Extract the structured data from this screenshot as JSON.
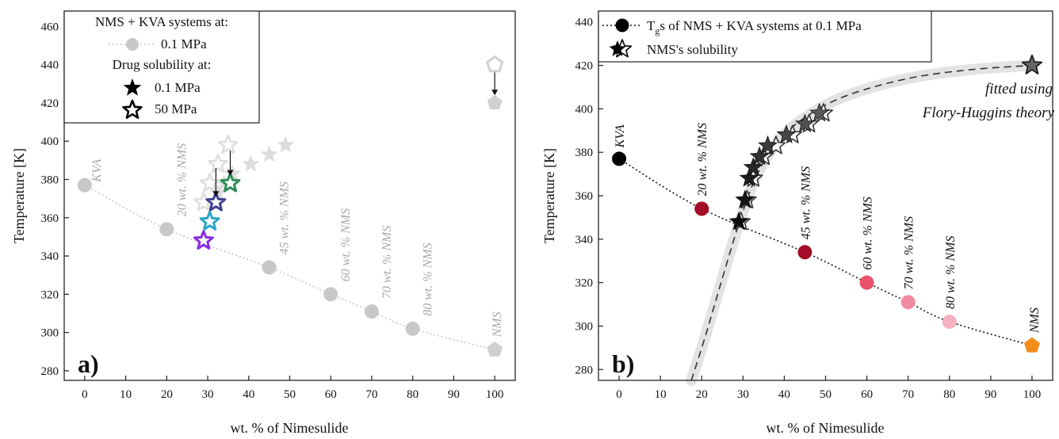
{
  "chart_data": [
    {
      "type": "scatter",
      "panel_label": "a)",
      "xlabel": "wt. % of Nimesulide",
      "ylabel": "Temperature [K]",
      "xlim": [
        -5,
        105
      ],
      "ylim": [
        275,
        468
      ],
      "xticks": [
        0,
        10,
        20,
        30,
        40,
        50,
        60,
        70,
        80,
        90,
        100
      ],
      "yticks": [
        280,
        300,
        320,
        340,
        360,
        380,
        400,
        420,
        440,
        460
      ],
      "legend": {
        "position": "top-left",
        "header1": "NMS + KVA systems at:",
        "item1": "0.1 MPa",
        "header2": "Drug solubility at:",
        "item2": "0.1 MPa",
        "item3": "50 MPa"
      },
      "tg_points": [
        {
          "x": 0,
          "y": 377,
          "label": "KVA"
        },
        {
          "x": 20,
          "y": 354,
          "label": "20 wt. % NMS"
        },
        {
          "x": 45,
          "y": 334,
          "label": "45 wt. % NMS"
        },
        {
          "x": 60,
          "y": 320,
          "label": "60 wt. % NMS"
        },
        {
          "x": 70,
          "y": 311,
          "label": "70 wt. % NMS"
        },
        {
          "x": 80,
          "y": 302,
          "label": "80 wt. % NMS"
        },
        {
          "x": 100,
          "y": 291,
          "label": "NMS"
        }
      ],
      "solubility_01": [
        {
          "x": 29,
          "y": 348
        },
        {
          "x": 30.5,
          "y": 358
        },
        {
          "x": 31.5,
          "y": 368
        },
        {
          "x": 32.5,
          "y": 373
        },
        {
          "x": 34,
          "y": 378
        },
        {
          "x": 36,
          "y": 383
        },
        {
          "x": 40.5,
          "y": 388
        },
        {
          "x": 45,
          "y": 393
        },
        {
          "x": 49,
          "y": 398
        },
        {
          "x": 100,
          "y": 420
        }
      ],
      "solubility_50": [
        {
          "x": 29,
          "y": 368
        },
        {
          "x": 30.5,
          "y": 378
        },
        {
          "x": 32.5,
          "y": 388
        },
        {
          "x": 35,
          "y": 398
        },
        {
          "x": 100,
          "y": 440
        }
      ],
      "colored_stars": [
        {
          "x": 29,
          "y": 348,
          "color": "#8a2be2"
        },
        {
          "x": 30.5,
          "y": 358,
          "color": "#2aa5c8"
        },
        {
          "x": 32,
          "y": 368,
          "color": "#3f3f8f"
        },
        {
          "x": 35.5,
          "y": 378,
          "color": "#2e8b57"
        }
      ],
      "arrows": [
        {
          "x": 32,
          "from": 386,
          "to": 371
        },
        {
          "x": 35.5,
          "from": 395,
          "to": 382
        },
        {
          "x": 100,
          "from": 436,
          "to": 424
        }
      ]
    },
    {
      "type": "scatter",
      "panel_label": "b)",
      "xlabel": "wt. % of Nimesulide",
      "ylabel": "Temperature [K]",
      "xlim": [
        -5,
        105
      ],
      "ylim": [
        275,
        445
      ],
      "xticks": [
        0,
        10,
        20,
        30,
        40,
        50,
        60,
        70,
        80,
        90,
        100
      ],
      "yticks": [
        280,
        300,
        320,
        340,
        360,
        380,
        400,
        420,
        440
      ],
      "legend": {
        "position": "top-left",
        "item1_main": "T",
        "item1_sub": "g",
        "item1_rest": "s of NMS + KVA systems at 0.1 MPa",
        "item2": "NMS's solubility"
      },
      "annotation_line1": "fitted using",
      "annotation_line2": "Flory-Huggins theory",
      "tg_points": [
        {
          "x": 0,
          "y": 377,
          "label": "KVA",
          "color": "#000000"
        },
        {
          "x": 20,
          "y": 354,
          "label": "20 wt. % NMS",
          "color": "#a30d27"
        },
        {
          "x": 45,
          "y": 334,
          "label": "45 wt. % NMS",
          "color": "#a30d27"
        },
        {
          "x": 60,
          "y": 320,
          "label": "60 wt. % NMS",
          "color": "#e8536b"
        },
        {
          "x": 70,
          "y": 311,
          "label": "70 wt. % NMS",
          "color": "#f08aa0"
        },
        {
          "x": 80,
          "y": 302,
          "label": "80 wt. % NMS",
          "color": "#f5b3c2"
        },
        {
          "x": 100,
          "y": 291,
          "label": "NMS",
          "color": "#f28c1a"
        }
      ],
      "solubility_filled": [
        {
          "x": 29,
          "y": 348
        },
        {
          "x": 30.5,
          "y": 358
        },
        {
          "x": 31.5,
          "y": 368
        },
        {
          "x": 32.5,
          "y": 373
        },
        {
          "x": 34,
          "y": 378
        },
        {
          "x": 36,
          "y": 383
        },
        {
          "x": 40.5,
          "y": 388
        },
        {
          "x": 45,
          "y": 393
        },
        {
          "x": 48.5,
          "y": 398
        },
        {
          "x": 100,
          "y": 420
        }
      ],
      "solubility_open": [
        {
          "x": 29.5,
          "y": 348
        },
        {
          "x": 31,
          "y": 358
        },
        {
          "x": 32.5,
          "y": 368
        },
        {
          "x": 35,
          "y": 378
        },
        {
          "x": 38,
          "y": 383
        },
        {
          "x": 42,
          "y": 388
        },
        {
          "x": 46,
          "y": 393
        },
        {
          "x": 49.5,
          "y": 398
        }
      ],
      "fit_curve": [
        {
          "x": 17.5,
          "y": 275
        },
        {
          "x": 21,
          "y": 296
        },
        {
          "x": 25,
          "y": 322
        },
        {
          "x": 29,
          "y": 347
        },
        {
          "x": 33,
          "y": 368
        },
        {
          "x": 38,
          "y": 384
        },
        {
          "x": 45,
          "y": 396
        },
        {
          "x": 55,
          "y": 406
        },
        {
          "x": 70,
          "y": 414
        },
        {
          "x": 85,
          "y": 418
        },
        {
          "x": 100,
          "y": 420
        }
      ]
    }
  ]
}
